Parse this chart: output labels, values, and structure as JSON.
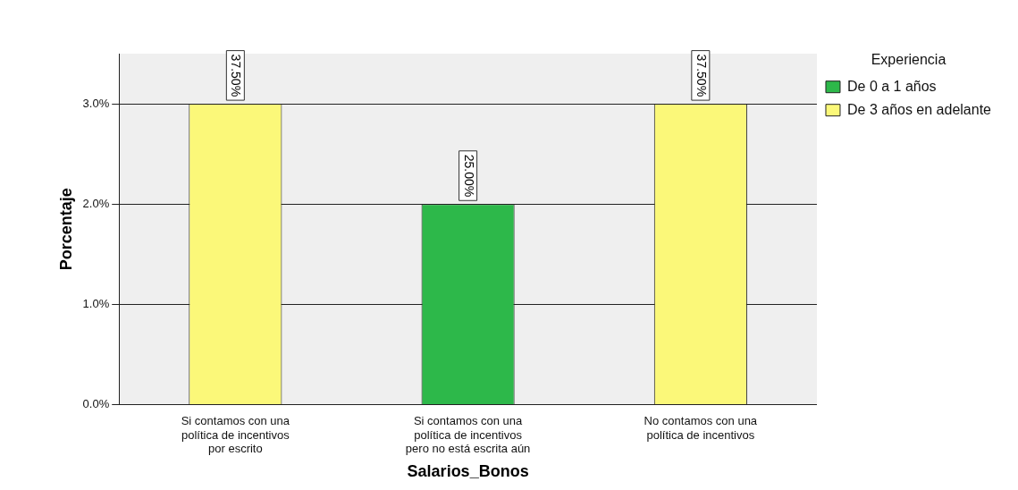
{
  "chart_data": {
    "type": "bar",
    "xlabel": "Salarios_Bonos",
    "ylabel": "Porcentaje",
    "legend_title": "Experiencia",
    "categories": [
      "Si contamos con una política de incentivos por escrito",
      "Si contamos con una política de incentivos pero no está escrita aún",
      "No contamos con una política de incentivos"
    ],
    "series": [
      {
        "name": "De 0 a 1 años",
        "color": "#2db84a",
        "values": [
          null,
          2.0,
          null
        ]
      },
      {
        "name": "De 3 años en adelante",
        "color": "#fbf879",
        "values": [
          3.0,
          null,
          3.0
        ]
      }
    ],
    "annotations": [
      {
        "text": "37.50%",
        "x": "Si contamos con una política de incentivos por escrito",
        "y": 3.0
      },
      {
        "text": "25.00%",
        "x": "Si contamos con una política de incentivos pero no está escrita aún",
        "y": 2.0
      },
      {
        "text": "37.50%",
        "x": "No contamos con una política de incentivos",
        "y": 3.0
      }
    ],
    "ylim": [
      0,
      3.5
    ],
    "yticks": [
      {
        "value": 0,
        "label": "0.0%"
      },
      {
        "value": 1,
        "label": "1.0%"
      },
      {
        "value": 2,
        "label": "2.0%"
      },
      {
        "value": 3,
        "label": "3.0%"
      }
    ],
    "grid": "y",
    "legend": "top right"
  }
}
